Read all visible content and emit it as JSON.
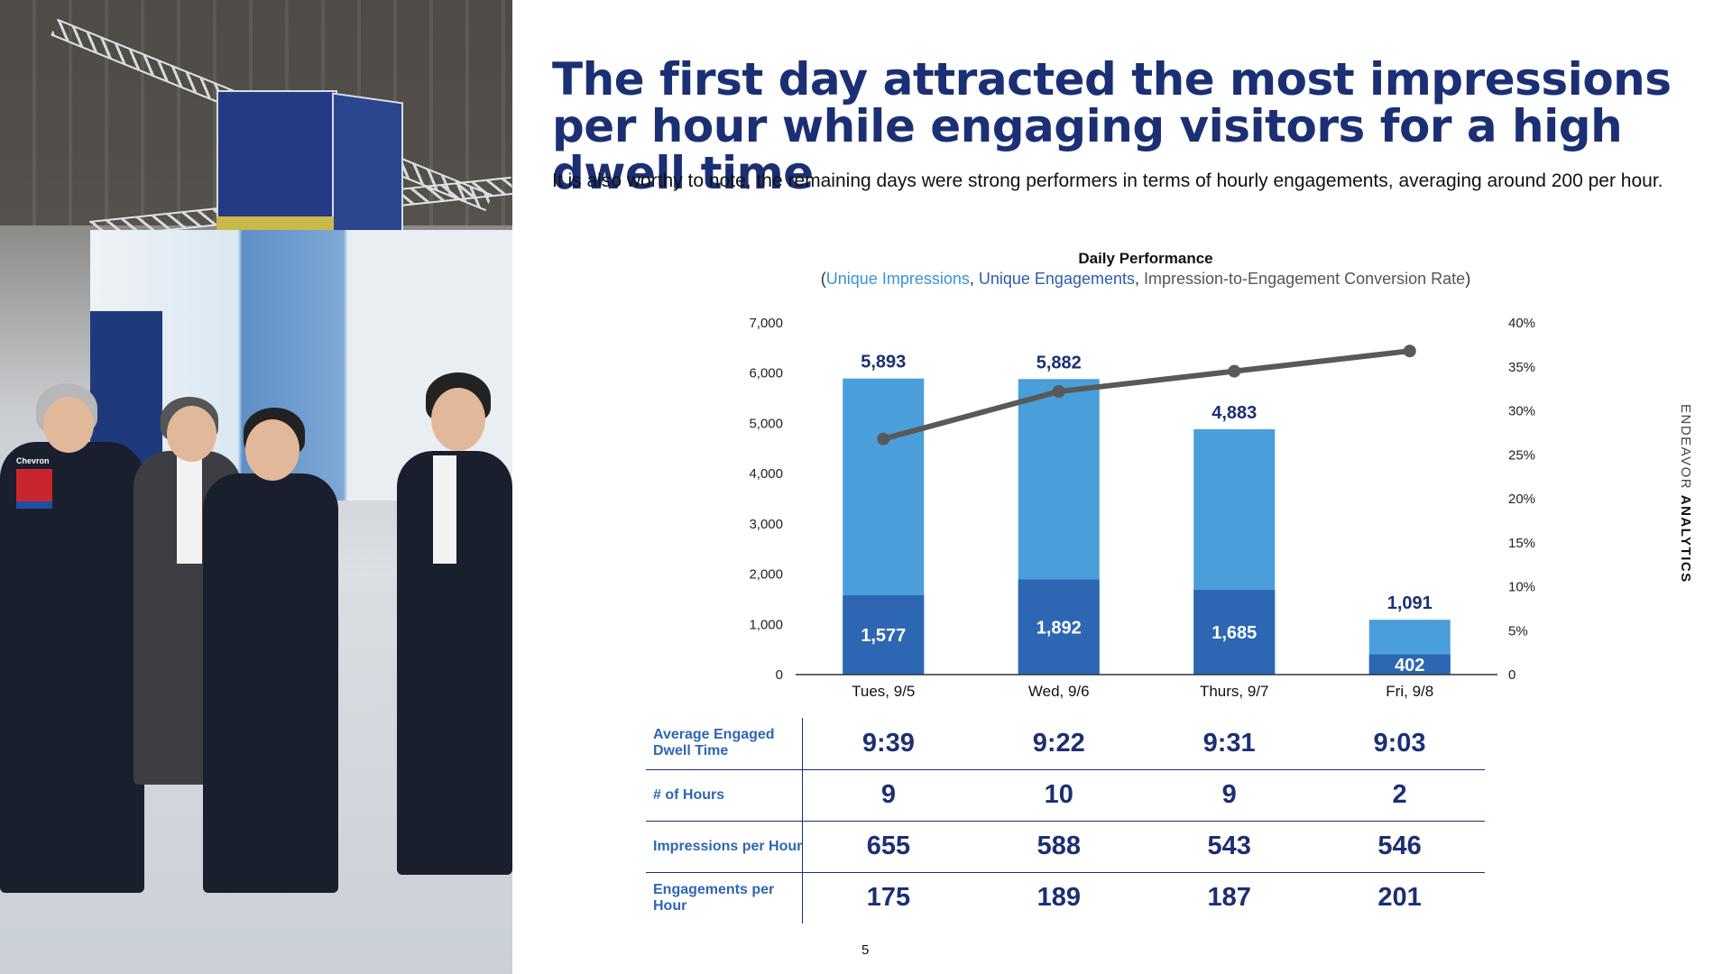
{
  "header": {
    "title": "The first day attracted the most impressions per hour while engaging visitors for a high dwell time",
    "subtitle": "It is also worthy to note, the remaining days were strong performers in terms of hourly engagements, averaging around 200 per hour."
  },
  "chart_data": {
    "type": "bar",
    "title": "Daily Performance",
    "subtitle_parts": {
      "open": "(",
      "impressions": "Unique Impressions",
      "sep1": ", ",
      "engagements": "Unique Engagements",
      "sep2": ", ",
      "conversion": "Impression-to-Engagement Conversion Rate",
      "close": ")"
    },
    "categories": [
      "Tues, 9/5",
      "Wed, 9/6",
      "Thurs, 9/7",
      "Fri, 9/8"
    ],
    "series": [
      {
        "name": "Unique Impressions",
        "kind": "bar-total",
        "color": "#4a9ed9",
        "values": [
          5893,
          5882,
          4883,
          1091
        ]
      },
      {
        "name": "Unique Engagements",
        "kind": "bar-inner",
        "color": "#2d66b3",
        "values": [
          1577,
          1892,
          1685,
          402
        ]
      },
      {
        "name": "Impression-to-Engagement Conversion Rate",
        "kind": "line",
        "axis": "right",
        "color": "#595959",
        "values": [
          26.8,
          32.2,
          34.5,
          36.8
        ]
      }
    ],
    "data_labels": {
      "impressions": [
        "5,893",
        "5,882",
        "4,883",
        "1,091"
      ],
      "engagements": [
        "1,577",
        "1,892",
        "1,685",
        "402"
      ]
    },
    "ylim": [
      0,
      7000
    ],
    "yticks": [
      "0",
      "1,000",
      "2,000",
      "3,000",
      "4,000",
      "5,000",
      "6,000",
      "7,000"
    ],
    "y2lim": [
      0,
      40
    ],
    "y2ticks": [
      "0",
      "5%",
      "10%",
      "15%",
      "20%",
      "25%",
      "30%",
      "35%",
      "40%"
    ],
    "grid": false,
    "legend": "none"
  },
  "metrics_table": {
    "rows": [
      {
        "label": "Average Engaged Dwell Time",
        "values": [
          "9:39",
          "9:22",
          "9:31",
          "9:03"
        ]
      },
      {
        "label": "# of Hours",
        "values": [
          "9",
          "10",
          "9",
          "2"
        ]
      },
      {
        "label": "Impressions per Hour",
        "values": [
          "655",
          "588",
          "543",
          "546"
        ]
      },
      {
        "label": "Engagements per Hour",
        "values": [
          "175",
          "189",
          "187",
          "201"
        ]
      }
    ]
  },
  "side_brand": {
    "light": "ENDEAVOR ",
    "bold": "ANALYTICS"
  },
  "page_number": "5",
  "photo": {
    "badge_text": "Chevron"
  },
  "colors": {
    "title": "#1b2f74",
    "impressions": "#4a9ed9",
    "engagements": "#2d66b3",
    "line": "#595959"
  }
}
